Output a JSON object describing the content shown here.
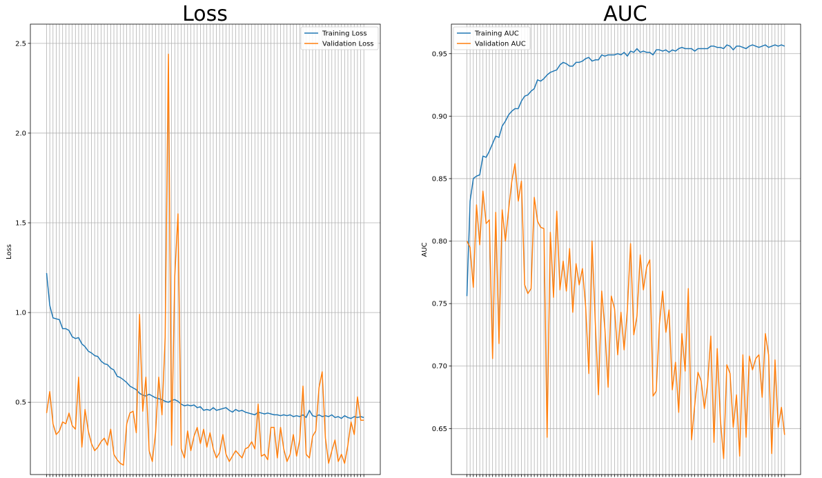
{
  "chart_data": [
    {
      "type": "line",
      "title": "Loss",
      "xlabel": "",
      "ylabel": "Loss",
      "ylim": [
        0.0972,
        2.6071
      ],
      "yticks": [
        "0.5",
        "1.0",
        "1.5",
        "2.0",
        "2.5"
      ],
      "ytick_values": [
        0.5,
        1.0,
        1.5,
        2.0,
        2.5
      ],
      "grid": true,
      "legend": "upper right",
      "x_count": 100,
      "colors": {
        "train": "#1f77b4",
        "val": "#ff7f0e"
      },
      "series": [
        {
          "name": "Training Loss",
          "values": [
            1.22,
            1.04,
            0.97,
            0.965,
            0.96,
            0.91,
            0.91,
            0.9,
            0.865,
            0.855,
            0.86,
            0.825,
            0.81,
            0.785,
            0.775,
            0.76,
            0.755,
            0.73,
            0.715,
            0.71,
            0.69,
            0.68,
            0.645,
            0.638,
            0.625,
            0.61,
            0.59,
            0.58,
            0.57,
            0.55,
            0.54,
            0.535,
            0.545,
            0.535,
            0.525,
            0.52,
            0.515,
            0.505,
            0.5,
            0.51,
            0.515,
            0.505,
            0.49,
            0.48,
            0.485,
            0.48,
            0.485,
            0.47,
            0.475,
            0.455,
            0.46,
            0.455,
            0.47,
            0.455,
            0.46,
            0.465,
            0.47,
            0.455,
            0.445,
            0.46,
            0.45,
            0.455,
            0.445,
            0.44,
            0.435,
            0.43,
            0.445,
            0.44,
            0.435,
            0.44,
            0.435,
            0.43,
            0.43,
            0.425,
            0.43,
            0.425,
            0.43,
            0.42,
            0.425,
            0.42,
            0.43,
            0.415,
            0.455,
            0.425,
            0.42,
            0.43,
            0.42,
            0.425,
            0.42,
            0.43,
            0.415,
            0.42,
            0.41,
            0.425,
            0.415,
            0.41,
            0.42,
            0.415,
            0.42,
            0.415
          ]
        },
        {
          "name": "Validation Loss",
          "values": [
            0.44,
            0.56,
            0.38,
            0.32,
            0.34,
            0.39,
            0.38,
            0.44,
            0.37,
            0.35,
            0.64,
            0.25,
            0.46,
            0.34,
            0.27,
            0.23,
            0.25,
            0.28,
            0.3,
            0.26,
            0.35,
            0.21,
            0.18,
            0.16,
            0.15,
            0.38,
            0.44,
            0.45,
            0.33,
            0.99,
            0.45,
            0.64,
            0.23,
            0.17,
            0.33,
            0.64,
            0.43,
            0.86,
            2.44,
            0.26,
            1.2,
            1.55,
            0.24,
            0.19,
            0.34,
            0.23,
            0.31,
            0.36,
            0.27,
            0.35,
            0.25,
            0.33,
            0.24,
            0.19,
            0.22,
            0.32,
            0.21,
            0.17,
            0.2,
            0.23,
            0.21,
            0.19,
            0.24,
            0.25,
            0.28,
            0.24,
            0.49,
            0.2,
            0.21,
            0.18,
            0.36,
            0.36,
            0.19,
            0.36,
            0.24,
            0.17,
            0.21,
            0.32,
            0.2,
            0.29,
            0.59,
            0.21,
            0.19,
            0.31,
            0.34,
            0.58,
            0.67,
            0.3,
            0.16,
            0.23,
            0.29,
            0.17,
            0.21,
            0.16,
            0.26,
            0.39,
            0.32,
            0.53,
            0.4,
            0.4
          ]
        }
      ]
    },
    {
      "type": "line",
      "title": "AUC",
      "xlabel": "",
      "ylabel": "AUC",
      "ylim": [
        0.6132,
        0.9736
      ],
      "yticks": [
        "0.65",
        "0.70",
        "0.75",
        "0.80",
        "0.85",
        "0.90",
        "0.95"
      ],
      "ytick_values": [
        0.65,
        0.7,
        0.75,
        0.8,
        0.85,
        0.9,
        0.95
      ],
      "grid": true,
      "legend": "upper left",
      "x_count": 100,
      "colors": {
        "train": "#1f77b4",
        "val": "#ff7f0e"
      },
      "series": [
        {
          "name": "Training AUC",
          "values": [
            0.756,
            0.832,
            0.85,
            0.852,
            0.853,
            0.868,
            0.867,
            0.872,
            0.878,
            0.884,
            0.883,
            0.892,
            0.896,
            0.901,
            0.904,
            0.906,
            0.906,
            0.912,
            0.916,
            0.917,
            0.92,
            0.922,
            0.929,
            0.928,
            0.93,
            0.933,
            0.935,
            0.936,
            0.937,
            0.941,
            0.943,
            0.942,
            0.94,
            0.94,
            0.943,
            0.943,
            0.944,
            0.946,
            0.947,
            0.944,
            0.945,
            0.945,
            0.949,
            0.948,
            0.949,
            0.949,
            0.949,
            0.95,
            0.949,
            0.951,
            0.948,
            0.952,
            0.951,
            0.954,
            0.951,
            0.952,
            0.951,
            0.951,
            0.949,
            0.953,
            0.953,
            0.952,
            0.953,
            0.951,
            0.953,
            0.952,
            0.954,
            0.955,
            0.954,
            0.954,
            0.954,
            0.952,
            0.954,
            0.954,
            0.954,
            0.954,
            0.956,
            0.956,
            0.955,
            0.955,
            0.954,
            0.957,
            0.956,
            0.953,
            0.956,
            0.956,
            0.955,
            0.954,
            0.956,
            0.957,
            0.956,
            0.955,
            0.956,
            0.957,
            0.955,
            0.956,
            0.957,
            0.956,
            0.957,
            0.956
          ]
        },
        {
          "name": "Validation AUC",
          "values": [
            0.8,
            0.795,
            0.763,
            0.829,
            0.797,
            0.84,
            0.814,
            0.817,
            0.706,
            0.823,
            0.718,
            0.825,
            0.8,
            0.825,
            0.848,
            0.862,
            0.832,
            0.848,
            0.765,
            0.758,
            0.762,
            0.835,
            0.816,
            0.811,
            0.81,
            0.643,
            0.807,
            0.755,
            0.824,
            0.761,
            0.784,
            0.76,
            0.794,
            0.743,
            0.782,
            0.765,
            0.778,
            0.748,
            0.694,
            0.8,
            0.735,
            0.677,
            0.76,
            0.73,
            0.683,
            0.756,
            0.746,
            0.709,
            0.743,
            0.713,
            0.745,
            0.798,
            0.725,
            0.74,
            0.789,
            0.761,
            0.779,
            0.785,
            0.676,
            0.68,
            0.734,
            0.76,
            0.727,
            0.745,
            0.681,
            0.703,
            0.663,
            0.726,
            0.696,
            0.762,
            0.641,
            0.669,
            0.695,
            0.688,
            0.666,
            0.685,
            0.724,
            0.639,
            0.714,
            0.657,
            0.626,
            0.701,
            0.694,
            0.651,
            0.677,
            0.628,
            0.709,
            0.643,
            0.708,
            0.697,
            0.706,
            0.709,
            0.675,
            0.726,
            0.709,
            0.63,
            0.705,
            0.651,
            0.667,
            0.645
          ]
        }
      ]
    }
  ]
}
